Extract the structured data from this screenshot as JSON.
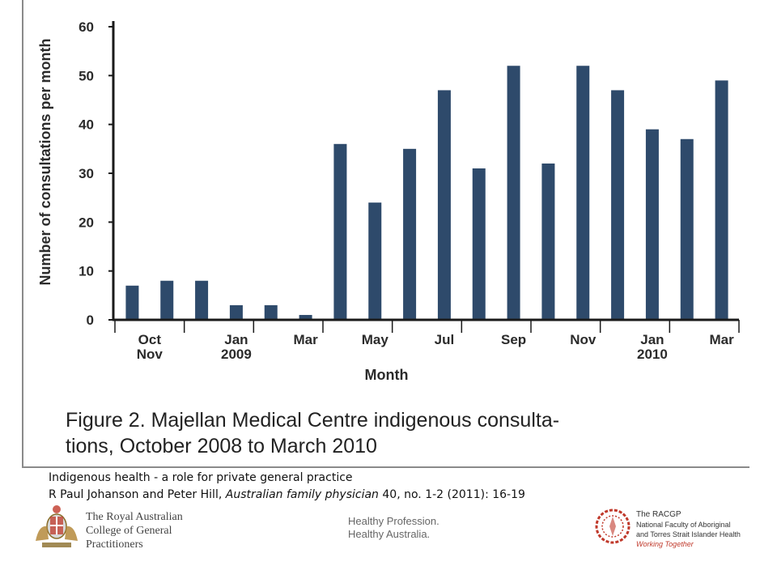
{
  "chart_data": {
    "type": "bar",
    "categories": [
      "Oct 2008",
      "Nov 2008",
      "Dec 2008",
      "Jan 2009",
      "Feb 2009",
      "Mar 2009",
      "Apr 2009",
      "May 2009",
      "Jun 2009",
      "Jul 2009",
      "Aug 2009",
      "Sep 2009",
      "Oct 2009",
      "Nov 2009",
      "Dec 2009",
      "Jan 2010",
      "Feb 2010",
      "Mar 2010"
    ],
    "values": [
      7,
      8,
      8,
      3,
      3,
      1,
      36,
      24,
      35,
      47,
      31,
      52,
      32,
      52,
      47,
      39,
      37,
      49
    ],
    "ylim": [
      0,
      60
    ],
    "yticks": [
      "0",
      "10",
      "20",
      "30",
      "40",
      "50",
      "60"
    ],
    "xtick_labels": [
      {
        "idx": 0.5,
        "lines": [
          "Oct",
          "Nov"
        ]
      },
      {
        "idx": 3,
        "lines": [
          "Jan",
          "2009"
        ]
      },
      {
        "idx": 5,
        "lines": [
          "Mar"
        ]
      },
      {
        "idx": 7,
        "lines": [
          "May"
        ]
      },
      {
        "idx": 9,
        "lines": [
          "Jul"
        ]
      },
      {
        "idx": 11,
        "lines": [
          "Sep"
        ]
      },
      {
        "idx": 13,
        "lines": [
          "Nov"
        ]
      },
      {
        "idx": 15,
        "lines": [
          "Jan",
          "2010"
        ]
      },
      {
        "idx": 17,
        "lines": [
          "Mar"
        ]
      }
    ],
    "xlabel": "Month",
    "ylabel": "Number of consultations per month",
    "title": "",
    "grid": false,
    "bar_color": "#2e4a6b"
  },
  "figure": {
    "caption_line1": "Figure 2. Majellan Medical Centre indigenous consulta-",
    "caption_line2": "tions, October 2008 to March 2010"
  },
  "citation": {
    "line1": "Indigenous health - a role for private general practice",
    "authors": "R Paul Johanson and Peter Hill, ",
    "journal": "Australian family physician",
    "details": " 40, no. 1-2 (2011): 16-19"
  },
  "footer": {
    "racgp_line1": "The Royal Australian",
    "racgp_line2": "College of General",
    "racgp_line3": "Practitioners",
    "tagline_line1": "Healthy Profession.",
    "tagline_line2": "Healthy Australia.",
    "faculty_line1": "The RACGP",
    "faculty_line2": "National Faculty of Aboriginal",
    "faculty_line3": "and Torres Strait Islander Health",
    "faculty_line4": "Working Together"
  }
}
